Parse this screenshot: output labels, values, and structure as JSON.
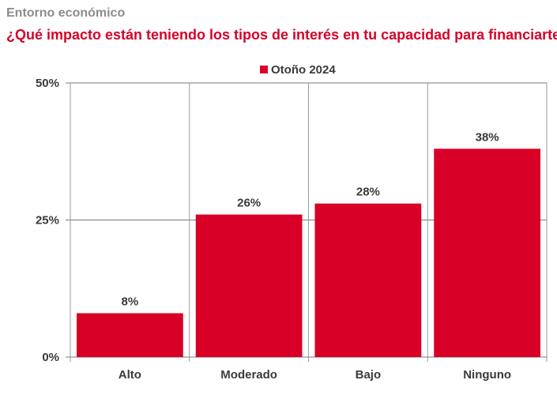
{
  "header": {
    "supertitle": "Entorno económico",
    "title": "¿Qué impacto están teniendo los tipos de interés en tu capacidad para financiarte?"
  },
  "chart_data": {
    "type": "bar",
    "categories": [
      "Alto",
      "Moderado",
      "Bajo",
      "Ninguno"
    ],
    "series": [
      {
        "name": "Otoño 2024",
        "values": [
          8,
          26,
          28,
          38
        ],
        "color": "#d80027"
      }
    ],
    "data_labels": [
      "8%",
      "26%",
      "28%",
      "38%"
    ],
    "ylim": [
      0,
      50
    ],
    "yticks": [
      0,
      25,
      50
    ],
    "ytick_labels": [
      "0%",
      "25%",
      "50%"
    ],
    "legend_position": "top-center",
    "grid": true
  }
}
